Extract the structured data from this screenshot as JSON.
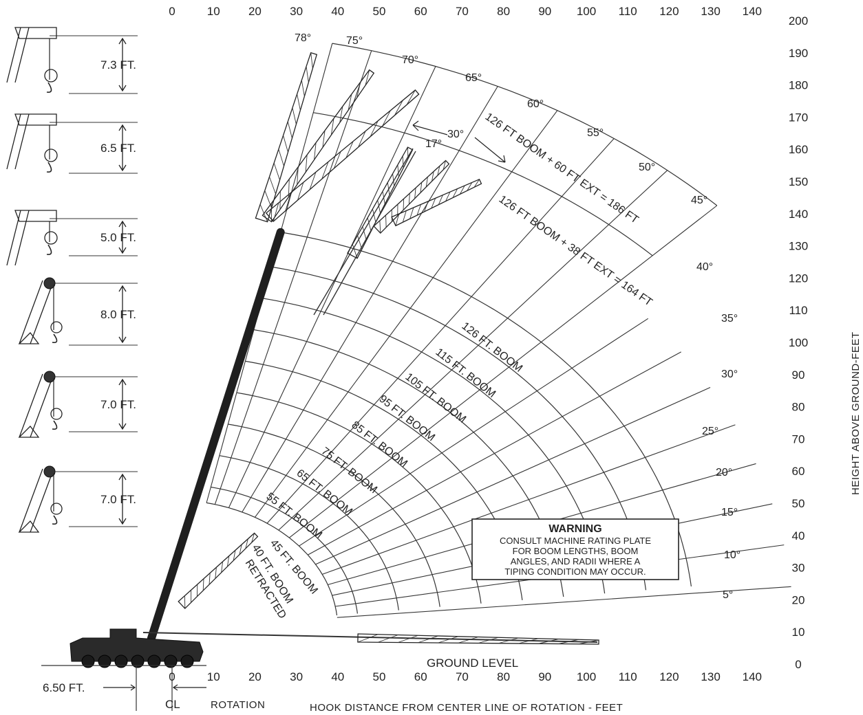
{
  "x_axis": {
    "ticks_top": [
      "0",
      "10",
      "20",
      "30",
      "40",
      "50",
      "60",
      "70",
      "80",
      "90",
      "100",
      "110",
      "120",
      "130",
      "140"
    ],
    "ticks_bottom": [
      "0",
      "10",
      "20",
      "30",
      "40",
      "50",
      "60",
      "70",
      "80",
      "90",
      "100",
      "110",
      "120",
      "130",
      "140"
    ],
    "title": "HOOK DISTANCE FROM CENTER LINE OF ROTATION - FEET",
    "rotation_label": "ROTATION",
    "centerline_label": "CL",
    "offset_label": "6.50 FT."
  },
  "y_axis": {
    "ticks": [
      "0",
      "10",
      "20",
      "30",
      "40",
      "50",
      "60",
      "70",
      "80",
      "90",
      "100",
      "110",
      "120",
      "130",
      "140",
      "150",
      "160",
      "170",
      "180",
      "190",
      "200"
    ],
    "title": "HEIGHT ABOVE GROUND-FEET"
  },
  "ground_label": "GROUND LEVEL",
  "angle_labels": [
    "78°",
    "75°",
    "70°",
    "65°",
    "60°",
    "55°",
    "50°",
    "45°",
    "40°",
    "35°",
    "30°",
    "25°",
    "20°",
    "15°",
    "10°",
    "5°"
  ],
  "boom_labels": [
    "126 FT. BOOM",
    "115 FT. BOOM",
    "105 FT. BOOM",
    "95 FT. BOOM",
    "85 FT. BOOM",
    "75 FT. BOOM",
    "65 FT. BOOM",
    "55 FT. BOOM",
    "45 FT. BOOM",
    "40 FT. BOOM"
  ],
  "retracted_label": "RETRACTED",
  "ext_labels": [
    "126 FT BOOM + 60 FT EXT = 186 FT",
    "126 FT BOOM + 38 FT EXT = 164 FT"
  ],
  "offset_angle_labels": [
    "17°",
    "30°"
  ],
  "hook_blocks": [
    "7.3 FT.",
    "6.5 FT.",
    "5.0 FT.",
    "8.0 FT.",
    "7.0 FT.",
    "7.0 FT."
  ],
  "warning": {
    "title": "WARNING",
    "lines": [
      "CONSULT MACHINE RATING PLATE",
      "FOR BOOM LENGTHS, BOOM",
      "ANGLES, AND RADII WHERE A",
      "TIPING CONDITION MAY OCCUR."
    ]
  },
  "chart_data": {
    "type": "range_diagram",
    "pivot_height_ft": 11,
    "boom_lengths_ft": [
      40,
      45,
      55,
      65,
      75,
      85,
      95,
      105,
      115,
      126
    ],
    "extended_lengths_ft": [
      164,
      186
    ],
    "boom_angles_deg": [
      5,
      10,
      15,
      20,
      25,
      30,
      35,
      40,
      45,
      50,
      55,
      60,
      65,
      70,
      75,
      78
    ],
    "offset_angles_deg": [
      17,
      30
    ],
    "xlim": [
      0,
      140
    ],
    "ylim": [
      0,
      200
    ]
  }
}
